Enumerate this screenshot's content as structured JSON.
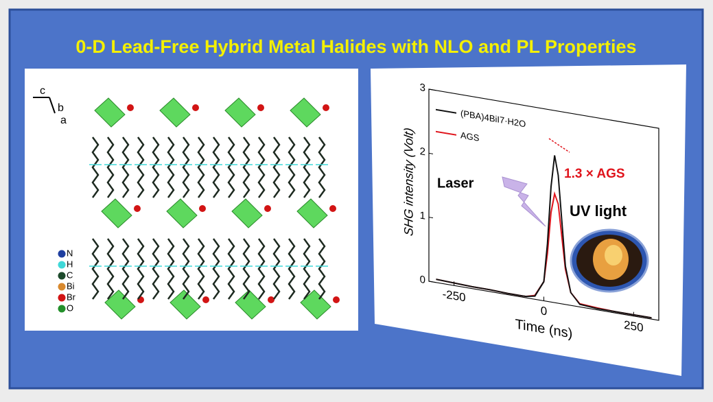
{
  "title": "0-D Lead-Free Hybrid Metal Halides with NLO and PL Properties",
  "structure": {
    "axes": [
      "c",
      "b",
      "a"
    ],
    "legend": [
      {
        "label": "N",
        "color": "#1f3fa0"
      },
      {
        "label": "H",
        "color": "#3fd8d8"
      },
      {
        "label": "C",
        "color": "#1d4a2c"
      },
      {
        "label": "Bi",
        "color": "#d8892e"
      },
      {
        "label": "Br",
        "color": "#d21414"
      },
      {
        "label": "O",
        "color": "#23902a"
      }
    ]
  },
  "chart_data": {
    "type": "line",
    "xlabel": "Time (ns)",
    "ylabel": "SHG intensity (Volt)",
    "x": [
      -300,
      -250,
      -200,
      -150,
      -100,
      -50,
      -25,
      0,
      10,
      20,
      30,
      40,
      50,
      60,
      75,
      100,
      150,
      200,
      250,
      300
    ],
    "series": [
      {
        "name": "(PBA)4BiI7·H2O",
        "color": "#111111",
        "values": [
          0.05,
          0.04,
          0.03,
          0.03,
          0.02,
          0.02,
          0.05,
          0.3,
          0.9,
          1.8,
          2.3,
          2.0,
          1.3,
          0.6,
          0.2,
          0.04,
          0.02,
          0.02,
          0.02,
          0.02
        ]
      },
      {
        "name": "AGS",
        "color": "#e0141c",
        "values": [
          0.05,
          0.04,
          0.03,
          0.03,
          0.02,
          0.02,
          0.06,
          0.3,
          0.75,
          1.4,
          1.7,
          1.55,
          1.05,
          0.55,
          0.2,
          0.05,
          0.03,
          0.02,
          0.02,
          0.02
        ]
      }
    ],
    "xlim": [
      -320,
      320
    ],
    "ylim": [
      0,
      3
    ],
    "xticks": [
      -250,
      0,
      250
    ],
    "yticks": [
      0,
      1,
      2,
      3
    ],
    "annotations": [
      "1.3 × AGS",
      "Laser",
      "UV light"
    ]
  }
}
